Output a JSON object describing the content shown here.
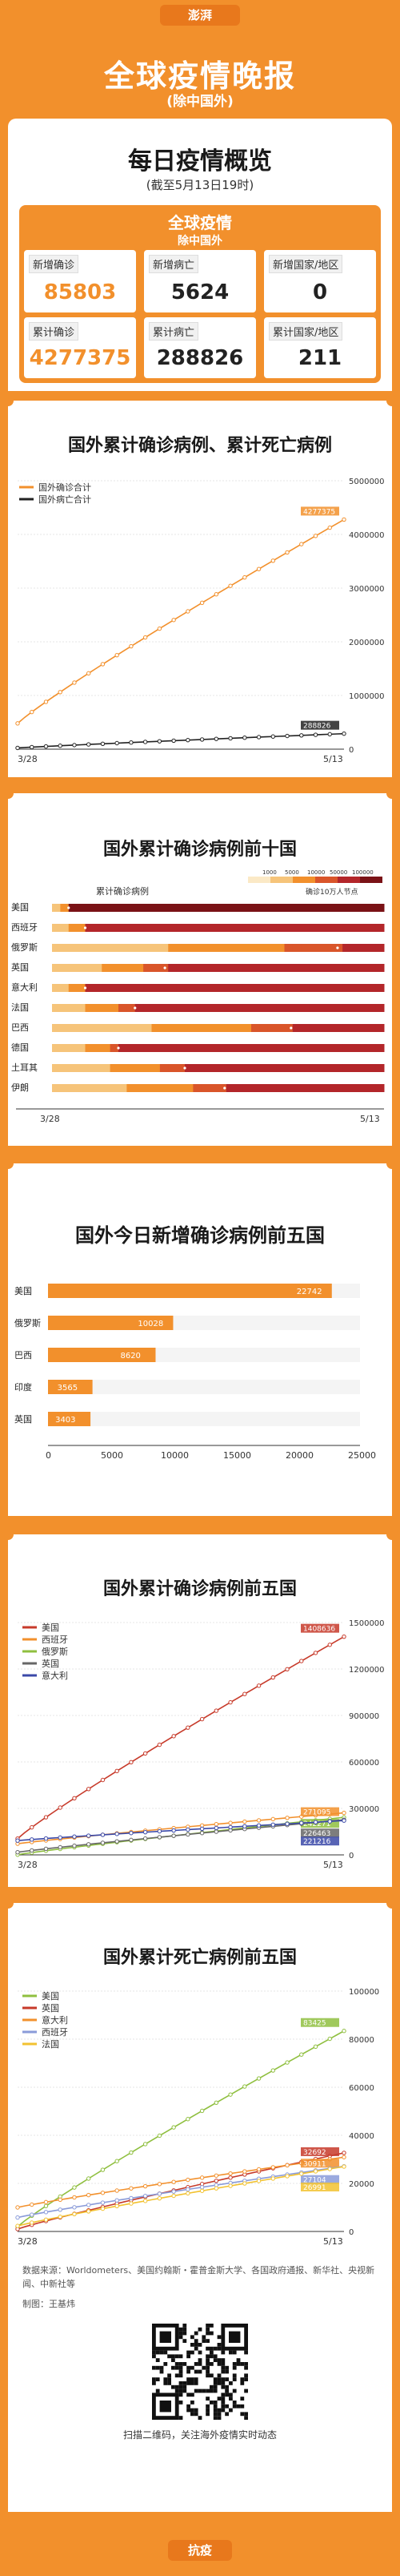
{
  "header": {
    "badge": "澎湃",
    "title": "全球疫情晚报",
    "subtitle": "(除中国外)"
  },
  "overview": {
    "title": "每日疫情概览",
    "as_of": "(截至5月13日19时)",
    "panel_title": "全球疫情",
    "panel_sub": "除中国外",
    "stats": [
      {
        "label": "新增确诊",
        "value": "85803"
      },
      {
        "label": "新增病亡",
        "value": "5624"
      },
      {
        "label": "新增国家/地区",
        "value": "0"
      },
      {
        "label": "累计确诊",
        "value": "4277375"
      },
      {
        "label": "累计病亡",
        "value": "288826"
      },
      {
        "label": "累计国家/地区",
        "value": "211"
      }
    ]
  },
  "colors": {
    "orange": "#f2902c",
    "dark": "#222222",
    "red": "#c73a2a",
    "accent_dark_orange": "#e8781c"
  },
  "chart_data": [
    {
      "type": "line",
      "title": "国外累计确诊病例、累计死亡病例",
      "x_range": [
        "3/28",
        "5/13"
      ],
      "ylim": [
        0,
        5000000
      ],
      "y_ticks": [
        "0",
        "1000000",
        "2000000",
        "3000000",
        "4000000",
        "5000000"
      ],
      "grid": true,
      "legend": "top-left",
      "series": [
        {
          "name": "国外确诊合计",
          "color": "#f2902c",
          "start": 480000,
          "end": 4277375,
          "end_label": "4277375"
        },
        {
          "name": "国外病亡合计",
          "color": "#222222",
          "start": 23000,
          "end": 288826,
          "end_label": "288826"
        }
      ]
    },
    {
      "type": "heatmap",
      "title": "国外累计确诊病例前十国",
      "legend_title": "累计确诊病例",
      "legend_ticks": [
        "1000",
        "5000",
        "10000",
        "50000",
        "100000"
      ],
      "legend_note": "确诊10万人节点",
      "x_range": [
        "3/28",
        "5/13"
      ],
      "categories": [
        "美国",
        "西班牙",
        "俄罗斯",
        "英国",
        "意大利",
        "法国",
        "巴西",
        "德国",
        "土耳其",
        "伊朗"
      ],
      "milestone_fraction": [
        0.05,
        0.1,
        0.86,
        0.34,
        0.1,
        0.25,
        0.72,
        0.2,
        0.4,
        0.52
      ]
    },
    {
      "type": "bar",
      "title": "国外今日新增确诊病例前五国",
      "categories": [
        "美国",
        "俄罗斯",
        "巴西",
        "印度",
        "英国"
      ],
      "values": [
        22742,
        10028,
        8620,
        3565,
        3403
      ],
      "value_labels": [
        "22742",
        "10028",
        "8620",
        "3565",
        "3403"
      ],
      "xlim": [
        0,
        25000
      ],
      "x_ticks": [
        "0",
        "5000",
        "10000",
        "15000",
        "20000",
        "25000"
      ]
    },
    {
      "type": "line",
      "title": "国外累计确诊病例前五国",
      "x_range": [
        "3/28",
        "5/13"
      ],
      "ylim": [
        0,
        1500000
      ],
      "y_ticks": [
        "0",
        "300000",
        "600000",
        "900000",
        "1200000",
        "1500000"
      ],
      "legend": "top-left",
      "series": [
        {
          "name": "美国",
          "color": "#c73a2a",
          "start": 105000,
          "end": 1408636,
          "end_label": "1408636"
        },
        {
          "name": "西班牙",
          "color": "#f2902c",
          "start": 72000,
          "end": 271095,
          "end_label": "271095"
        },
        {
          "name": "俄罗斯",
          "color": "#8fbf3f",
          "start": 1300,
          "end": 242271,
          "end_label": "242271"
        },
        {
          "name": "英国",
          "color": "#666666",
          "start": 17000,
          "end": 226463,
          "end_label": "226463"
        },
        {
          "name": "意大利",
          "color": "#3b49a8",
          "start": 92000,
          "end": 221216,
          "end_label": "221216"
        }
      ]
    },
    {
      "type": "line",
      "title": "国外累计死亡病例前五国",
      "x_range": [
        "3/28",
        "5/13"
      ],
      "ylim": [
        0,
        100000
      ],
      "y_ticks": [
        "0",
        "20000",
        "40000",
        "60000",
        "80000",
        "100000"
      ],
      "legend": "top-left",
      "series": [
        {
          "name": "美国",
          "color": "#8fbf3f",
          "start": 2000,
          "end": 83425,
          "end_label": "83425"
        },
        {
          "name": "英国",
          "color": "#c73a2a",
          "start": 1000,
          "end": 32692,
          "end_label": "32692"
        },
        {
          "name": "意大利",
          "color": "#f2902c",
          "start": 10000,
          "end": 30911,
          "end_label": "30911"
        },
        {
          "name": "西班牙",
          "color": "#8a9bd9",
          "start": 5800,
          "end": 27104,
          "end_label": "27104"
        },
        {
          "name": "法国",
          "color": "#f2c230",
          "start": 2300,
          "end": 26991,
          "end_label": "26991"
        }
      ]
    }
  ],
  "footer": {
    "source": "数据来源：Worldometers、美国约翰斯・霍普金斯大学、各国政府通报、新华社、央视新闻、中新社等",
    "author": "制图：王基炜",
    "qr_caption": "扫描二维码，关注海外疫情实时动态",
    "bottom_label": "抗疫"
  }
}
